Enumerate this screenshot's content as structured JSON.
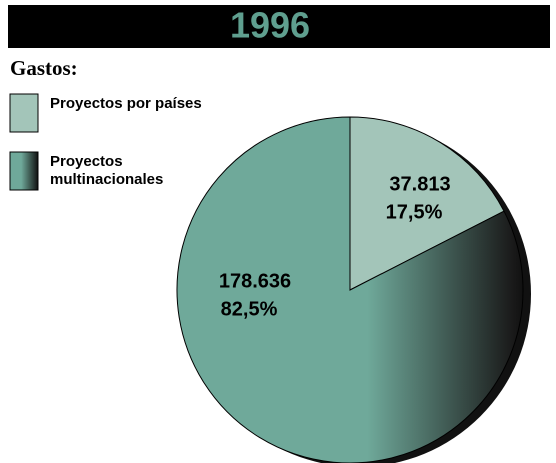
{
  "chart_data": {
    "type": "pie",
    "title": "1996",
    "subtitle": "Gastos:",
    "categories": [
      "Proyectos por países",
      "Proyectos multinacionales"
    ],
    "values": [
      37813,
      178636
    ],
    "value_labels": [
      "37.813",
      "178.636"
    ],
    "percents": [
      17.5,
      82.5
    ],
    "percent_labels": [
      "17,5%",
      "82,5%"
    ],
    "colors": [
      "#a3c5b9",
      "#6fa99a"
    ],
    "legend": "top-left"
  }
}
